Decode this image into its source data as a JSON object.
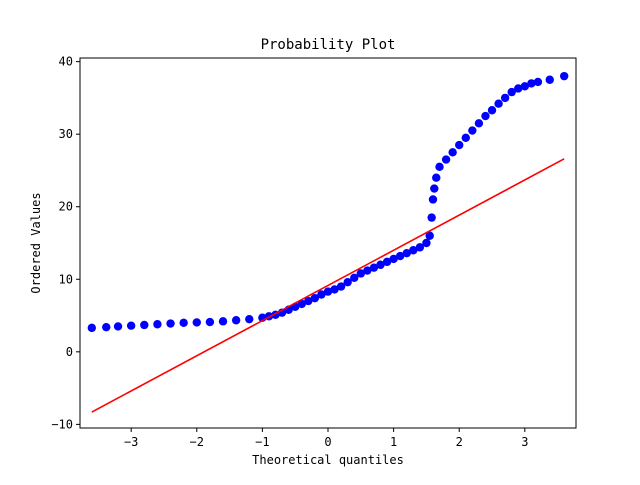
{
  "chart_data": {
    "type": "scatter",
    "title": "Probability Plot",
    "xlabel": "Theoretical quantiles",
    "ylabel": "Ordered Values",
    "xlim": [
      -3.78,
      3.78
    ],
    "ylim": [
      -10.5,
      40.5
    ],
    "xticks": [
      -3,
      -2,
      -1,
      0,
      1,
      2,
      3
    ],
    "yticks": [
      -10,
      0,
      10,
      20,
      30,
      40
    ],
    "xtick_labels": [
      "−3",
      "−2",
      "−1",
      "0",
      "1",
      "2",
      "3"
    ],
    "ytick_labels": [
      "−10",
      "0",
      "10",
      "20",
      "30",
      "40"
    ],
    "grid": false,
    "legend": "none",
    "colors": {
      "points": "#0000ff",
      "fit_line": "#ff0000"
    },
    "series": [
      {
        "kind": "points",
        "x": [
          -3.6,
          -3.38,
          -3.2,
          -3.0,
          -2.8,
          -2.6,
          -2.4,
          -2.2,
          -2.0,
          -1.8,
          -1.6,
          -1.4,
          -1.2,
          -1.0,
          -0.9,
          -0.8,
          -0.7,
          -0.6,
          -0.5,
          -0.4,
          -0.3,
          -0.2,
          -0.1,
          0.0,
          0.1,
          0.2,
          0.3,
          0.4,
          0.5,
          0.6,
          0.7,
          0.8,
          0.9,
          1.0,
          1.1,
          1.2,
          1.3,
          1.4,
          1.5,
          1.55,
          1.58,
          1.6,
          1.62,
          1.65,
          1.7,
          1.8,
          1.9,
          2.0,
          2.1,
          2.2,
          2.3,
          2.4,
          2.5,
          2.6,
          2.7,
          2.8,
          2.9,
          3.0,
          3.1,
          3.2,
          3.38,
          3.6
        ],
        "y": [
          3.3,
          3.4,
          3.5,
          3.6,
          3.7,
          3.8,
          3.9,
          4.0,
          4.05,
          4.1,
          4.2,
          4.35,
          4.5,
          4.7,
          4.9,
          5.1,
          5.4,
          5.8,
          6.2,
          6.6,
          7.0,
          7.4,
          7.9,
          8.3,
          8.6,
          9.0,
          9.6,
          10.2,
          10.8,
          11.2,
          11.6,
          12.0,
          12.4,
          12.8,
          13.2,
          13.6,
          14.0,
          14.4,
          15.0,
          16.0,
          18.5,
          21.0,
          22.5,
          24.0,
          25.5,
          26.5,
          27.5,
          28.5,
          29.5,
          30.5,
          31.5,
          32.5,
          33.3,
          34.2,
          35.0,
          35.8,
          36.3,
          36.6,
          37.0,
          37.2,
          37.5,
          38.0
        ]
      },
      {
        "kind": "line",
        "x": [
          -3.6,
          3.6
        ],
        "y": [
          -8.3,
          26.6
        ]
      }
    ]
  }
}
